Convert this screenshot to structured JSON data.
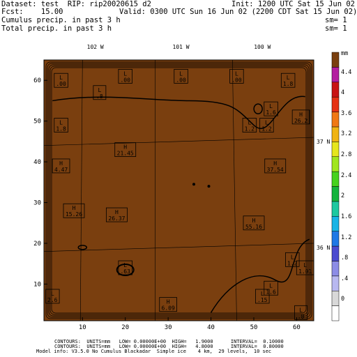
{
  "header": {
    "line1_left": "Dataset: test  RIP: rip20020615 d2",
    "line1_right": "Init: 1200 UTC Sat 15 Jun 02",
    "line2_left": "Fcst:    15.00",
    "line2_right": "Valid: 0300 UTC Sun 16 Jun 02 (2200 CDT Sat 15 Jun 02)",
    "line3_left": "Cumulus precip. in past 3 h",
    "line3_right": "sm= 1",
    "line4_left": "Total precip. in past 3 h",
    "line4_right": "sm= 1"
  },
  "map": {
    "background_color": "#7a3f0f",
    "lon_labels": [
      "102 W",
      "101 W",
      "100 W"
    ],
    "lat_labels": [
      "37 N",
      "36 N"
    ],
    "x_ticks": [
      "10",
      "20",
      "30",
      "40",
      "50",
      "60"
    ],
    "y_ticks": [
      "10",
      "20",
      "30",
      "40",
      "50",
      "60"
    ],
    "x_range": [
      1,
      64
    ],
    "y_range": [
      1,
      65
    ],
    "extrema_labels": [
      {
        "letter": "L",
        "value": ".00",
        "x": 5,
        "y": 60
      },
      {
        "letter": "L",
        "value": ".00",
        "x": 20,
        "y": 61
      },
      {
        "letter": "L",
        "value": ".00",
        "x": 33,
        "y": 61
      },
      {
        "letter": "L",
        "value": ".00",
        "x": 46,
        "y": 61
      },
      {
        "letter": "L",
        "value": ".8",
        "x": 14,
        "y": 57
      },
      {
        "letter": "L",
        "value": "1.8",
        "x": 58,
        "y": 60
      },
      {
        "letter": "H",
        "value": "26.2",
        "x": 61,
        "y": 51
      },
      {
        "letter": "L",
        "value": "1.8",
        "x": 5,
        "y": 49
      },
      {
        "letter": "L",
        "value": "1.2",
        "x": 49,
        "y": 49
      },
      {
        "letter": "L",
        "value": "1.2",
        "x": 53,
        "y": 49
      },
      {
        "letter": "L",
        "value": "1.6",
        "x": 54,
        "y": 53
      },
      {
        "letter": "H",
        "value": "21.45",
        "x": 20,
        "y": 43
      },
      {
        "letter": "H",
        "value": "37.54",
        "x": 55,
        "y": 39
      },
      {
        "letter": "H",
        "value": "4.47",
        "x": 5,
        "y": 39
      },
      {
        "letter": "H",
        "value": "15.26",
        "x": 8,
        "y": 28
      },
      {
        "letter": "H",
        "value": "26.37",
        "x": 18,
        "y": 27
      },
      {
        "letter": "H",
        "value": "55.16",
        "x": 50,
        "y": 25
      },
      {
        "letter": "L",
        "value": ".63",
        "x": 20,
        "y": 14
      },
      {
        "letter": "L",
        "value": "1.2",
        "x": 59,
        "y": 16
      },
      {
        "letter": "L",
        "value": "1.01",
        "x": 62,
        "y": 14
      },
      {
        "letter": "L",
        "value": ".15",
        "x": 52,
        "y": 7
      },
      {
        "letter": "L",
        "value": "1.6",
        "x": 54,
        "y": 9
      },
      {
        "letter": "H",
        "value": "6.09",
        "x": 30,
        "y": 5
      },
      {
        "letter": "L",
        "value": "2.6",
        "x": 3,
        "y": 7
      },
      {
        "letter": "L",
        "value": ".8",
        "x": 61,
        "y": 3
      }
    ]
  },
  "colorbar": {
    "top_label": "mm",
    "labels": [
      "4.4",
      "4",
      "3.6",
      "3.2",
      "2.8",
      "2.4",
      "2",
      "1.6",
      "1.2",
      ".8",
      ".4",
      "0"
    ],
    "colors": [
      "#ffffff",
      "#d8d8d8",
      "#b8b8f0",
      "#8c8ce6",
      "#4a4ad0",
      "#1e78e6",
      "#19b4e6",
      "#1ec8a0",
      "#14b43c",
      "#46d21e",
      "#a0e61e",
      "#e6e61e",
      "#f0b414",
      "#f07814",
      "#e63214",
      "#c81414",
      "#b41ea0",
      "#7a3f0f"
    ]
  },
  "footer": {
    "line1": "CONTOURS:  UNITS=mm   LOW= 0.00000E+00  HIGH=   1.9000      INTERVAL=  0.10000",
    "line2": "CONTOURS:  UNITS=mm   LOW= 0.00000E+00  HIGH=   4.8000      INTERVAL=  0.80000",
    "line3": "Model info: V3.5.0 No Cumulus Blackadar  Simple ice    4 km,  29 levels,  10 sec"
  }
}
